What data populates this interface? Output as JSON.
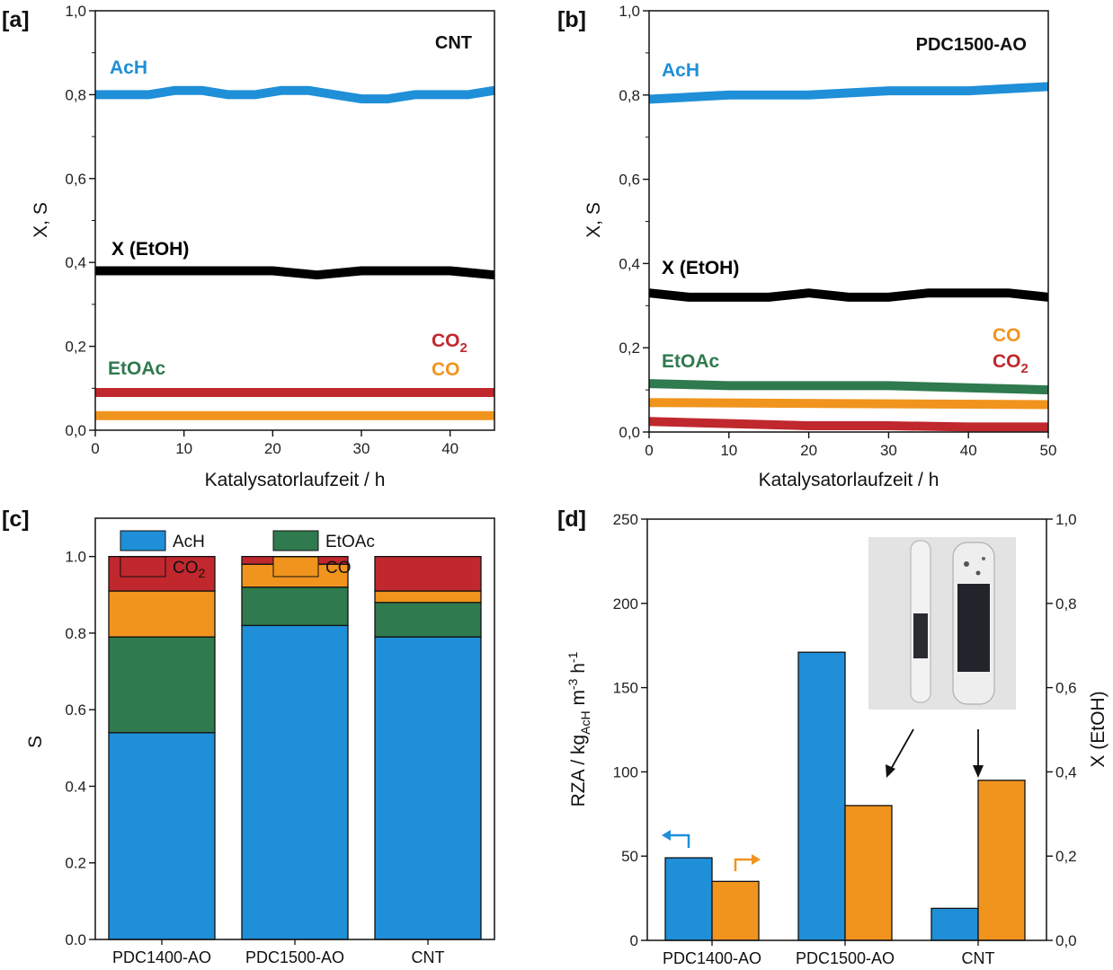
{
  "colors": {
    "acH": "#1f8fd8",
    "etoac": "#2f7a4e",
    "co2": "#c0282e",
    "co": "#f0941e",
    "conversion": "#000000",
    "vial_background": "#e4e4e4"
  },
  "panels": {
    "a": {
      "letter": "[a]",
      "title": "CNT",
      "xlabel": "Katalysatorlaufzeit / h",
      "ylabel": "X, S",
      "xticks": [
        "0",
        "10",
        "20",
        "30",
        "40"
      ],
      "yticks": [
        "0,0",
        "0,2",
        "0,4",
        "0,6",
        "0,8",
        "1,0"
      ],
      "labels": {
        "acH": "AcH",
        "conversion": "X (EtOH)",
        "co2": "CO",
        "co2_sub": "2",
        "co": "CO",
        "etoac": "EtOAc"
      }
    },
    "b": {
      "letter": "[b]",
      "title": "PDC1500-AO",
      "xlabel": "Katalysatorlaufzeit / h",
      "ylabel": "X, S",
      "xticks": [
        "0",
        "10",
        "20",
        "30",
        "40",
        "50"
      ],
      "yticks": [
        "0,0",
        "0,2",
        "0,4",
        "0,6",
        "0,8",
        "1,0"
      ],
      "labels": {
        "acH": "AcH",
        "conversion": "X (EtOH)",
        "co": "CO",
        "co2": "CO",
        "co2_sub": "2",
        "etoac": "EtOAc"
      }
    },
    "c": {
      "letter": "[c]",
      "ylabel": "S",
      "yticks": [
        "0.0",
        "0.2",
        "0.4",
        "0.6",
        "0.8",
        "1.0"
      ],
      "legend": {
        "acH": "AcH",
        "etoac": "EtOAc",
        "co2": "CO",
        "co2_sub": "2",
        "co": "CO"
      }
    },
    "d": {
      "letter": "[d]",
      "ylabel_left_main": "RZA / kg",
      "ylabel_left_sub": "AcH",
      "ylabel_left_unit_1": " m",
      "ylabel_left_sup_1": "-3",
      "ylabel_left_unit_2": " h",
      "ylabel_left_sup_2": "-1",
      "ylabel_right": "X (EtOH)",
      "yticks_left": [
        "0",
        "50",
        "100",
        "150",
        "200",
        "250"
      ],
      "yticks_right": [
        "0,0",
        "0,2",
        "0,4",
        "0,6",
        "0,8",
        "1,0"
      ],
      "inset_photo": "catalyst-vials-photo"
    }
  },
  "chart_data": [
    {
      "panel": "a",
      "type": "line",
      "title": "CNT",
      "xlabel": "Katalysatorlaufzeit / h",
      "ylabel": "X, S",
      "xlim": [
        0,
        45
      ],
      "ylim": [
        0,
        1
      ],
      "grid": false,
      "series": [
        {
          "name": "AcH",
          "color_key": "acH",
          "x": [
            0,
            3,
            6,
            9,
            12,
            15,
            18,
            21,
            24,
            27,
            30,
            33,
            36,
            39,
            42,
            45
          ],
          "y": [
            0.8,
            0.8,
            0.8,
            0.81,
            0.81,
            0.8,
            0.8,
            0.81,
            0.81,
            0.8,
            0.79,
            0.79,
            0.8,
            0.8,
            0.8,
            0.81
          ]
        },
        {
          "name": "X (EtOH)",
          "color_key": "conversion",
          "x": [
            0,
            5,
            10,
            15,
            20,
            25,
            30,
            35,
            40,
            45
          ],
          "y": [
            0.38,
            0.38,
            0.38,
            0.38,
            0.38,
            0.37,
            0.38,
            0.38,
            0.38,
            0.37
          ]
        },
        {
          "name": "CO2",
          "color_key": "co2",
          "x": [
            0,
            45
          ],
          "y": [
            0.09,
            0.09
          ]
        },
        {
          "name": "CO",
          "color_key": "co",
          "x": [
            0,
            45
          ],
          "y": [
            0.035,
            0.035
          ]
        }
      ]
    },
    {
      "panel": "b",
      "type": "line",
      "title": "PDC1500-AO",
      "xlabel": "Katalysatorlaufzeit / h",
      "ylabel": "X, S",
      "xlim": [
        0,
        50
      ],
      "ylim": [
        0,
        1
      ],
      "grid": false,
      "series": [
        {
          "name": "AcH",
          "color_key": "acH",
          "x": [
            0,
            10,
            20,
            30,
            40,
            50
          ],
          "y": [
            0.79,
            0.8,
            0.8,
            0.81,
            0.81,
            0.82
          ]
        },
        {
          "name": "X (EtOH)",
          "color_key": "conversion",
          "x": [
            0,
            5,
            10,
            15,
            20,
            25,
            30,
            35,
            40,
            45,
            50
          ],
          "y": [
            0.33,
            0.32,
            0.32,
            0.32,
            0.33,
            0.32,
            0.32,
            0.33,
            0.33,
            0.33,
            0.32
          ]
        },
        {
          "name": "EtOAc",
          "color_key": "etoac",
          "x": [
            0,
            10,
            20,
            30,
            40,
            50
          ],
          "y": [
            0.115,
            0.11,
            0.11,
            0.11,
            0.105,
            0.1
          ]
        },
        {
          "name": "CO",
          "color_key": "co",
          "x": [
            0,
            50
          ],
          "y": [
            0.07,
            0.065
          ]
        },
        {
          "name": "CO2",
          "color_key": "co2",
          "x": [
            0,
            10,
            20,
            30,
            40,
            50
          ],
          "y": [
            0.025,
            0.02,
            0.015,
            0.015,
            0.012,
            0.012
          ]
        }
      ]
    },
    {
      "panel": "c",
      "type": "bar",
      "stacked": true,
      "ylabel": "S",
      "ylim": [
        0,
        1.1
      ],
      "legend_position": "top",
      "categories": [
        "PDC1400-AO",
        "PDC1500-AO",
        "CNT"
      ],
      "series": [
        {
          "name": "AcH",
          "color_key": "acH",
          "values": [
            0.54,
            0.82,
            0.79
          ]
        },
        {
          "name": "EtOAc",
          "color_key": "etoac",
          "values": [
            0.25,
            0.1,
            0.09
          ]
        },
        {
          "name": "CO",
          "color_key": "co",
          "values": [
            0.12,
            0.06,
            0.03
          ]
        },
        {
          "name": "CO2",
          "color_key": "co2",
          "values": [
            0.09,
            0.02,
            0.09
          ]
        }
      ]
    },
    {
      "panel": "d",
      "type": "bar",
      "categories": [
        "PDC1400-AO",
        "PDC1500-AO",
        "CNT"
      ],
      "ylim_left": [
        0,
        250
      ],
      "ylim_right": [
        0,
        1
      ],
      "series": [
        {
          "name": "RZA",
          "axis": "left",
          "color_key": "acH",
          "values": [
            49,
            171,
            19
          ]
        },
        {
          "name": "X (EtOH)",
          "axis": "right",
          "color_key": "co",
          "values": [
            0.14,
            0.32,
            0.38
          ]
        }
      ]
    }
  ]
}
